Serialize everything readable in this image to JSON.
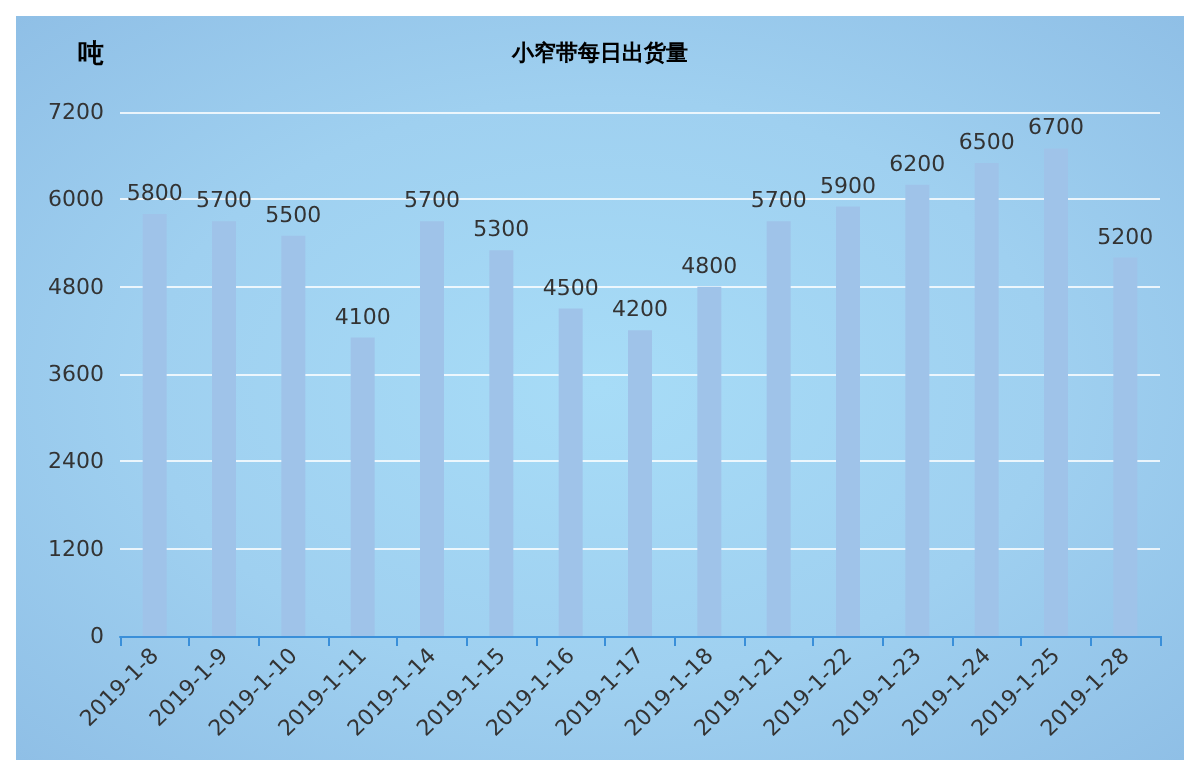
{
  "chart_data": {
    "type": "bar",
    "title": "小窄带每日出货量",
    "ylabel": "吨",
    "categories": [
      "2019-1-8",
      "2019-1-9",
      "2019-1-10",
      "2019-1-11",
      "2019-1-14",
      "2019-1-15",
      "2019-1-16",
      "2019-1-17",
      "2019-1-18",
      "2019-1-21",
      "2019-1-22",
      "2019-1-23",
      "2019-1-24",
      "2019-1-25",
      "2019-1-28"
    ],
    "values": [
      5800,
      5700,
      5500,
      4100,
      5700,
      5300,
      4500,
      4200,
      4800,
      5700,
      5900,
      6200,
      6500,
      6700,
      5200
    ],
    "color": "#9fc3e9",
    "ylim": [
      0,
      7200
    ],
    "yticks": [
      0,
      1200,
      2400,
      3600,
      4800,
      6000,
      7200
    ],
    "grid": "y",
    "data_labels": true
  }
}
